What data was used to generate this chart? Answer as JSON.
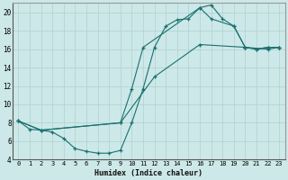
{
  "xlabel": "Humidex (Indice chaleur)",
  "bg_color": "#cde8e8",
  "line_color": "#1a7070",
  "grid_color": "#afd0d0",
  "xlim": [
    -0.5,
    23.5
  ],
  "ylim": [
    4,
    21
  ],
  "xticks": [
    0,
    1,
    2,
    3,
    4,
    5,
    6,
    7,
    8,
    9,
    10,
    11,
    12,
    13,
    14,
    15,
    16,
    17,
    18,
    19,
    20,
    21,
    22,
    23
  ],
  "yticks": [
    4,
    6,
    8,
    10,
    12,
    14,
    16,
    18,
    20
  ],
  "line1_x": [
    0,
    1,
    2,
    3,
    4,
    5,
    6,
    7,
    8,
    9,
    10,
    11,
    12,
    13,
    14,
    15,
    16,
    17,
    18,
    19,
    20,
    21,
    22,
    23
  ],
  "line1_y": [
    8.2,
    7.3,
    7.2,
    7.0,
    6.3,
    5.2,
    4.9,
    4.7,
    4.7,
    5.0,
    8.0,
    11.7,
    16.2,
    18.5,
    19.2,
    19.3,
    20.5,
    20.8,
    19.3,
    18.5,
    16.2,
    16.0,
    16.2,
    16.2
  ],
  "line2_x": [
    0,
    2,
    9,
    10,
    11,
    16,
    17,
    19,
    20,
    21,
    22,
    23
  ],
  "line2_y": [
    8.2,
    7.2,
    8.0,
    11.7,
    16.2,
    20.5,
    19.3,
    18.5,
    16.2,
    16.0,
    16.2,
    16.2
  ],
  "line3_x": [
    0,
    2,
    9,
    12,
    16,
    20,
    22,
    23
  ],
  "line3_y": [
    8.2,
    7.2,
    8.0,
    13.0,
    16.5,
    16.2,
    16.0,
    16.2
  ]
}
